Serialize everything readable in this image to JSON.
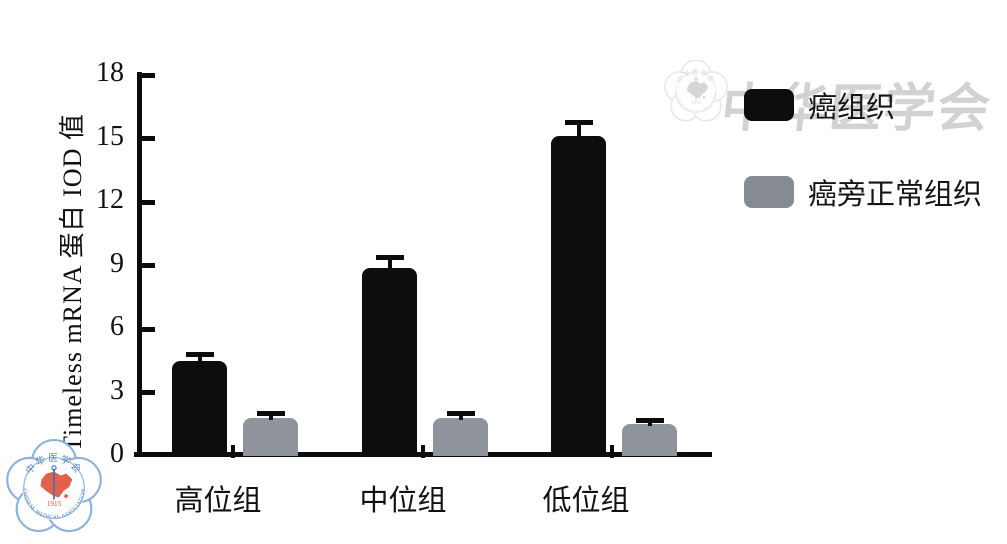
{
  "figure": {
    "background": "#ffffff",
    "axis_color": "#0c0c0c"
  },
  "y_axis": {
    "title": "Timeless mRNA 蛋白 IOD 值"
  },
  "legend": [
    {
      "label": "癌组织",
      "color": "#0d0d0d"
    },
    {
      "label": "癌旁正常组织",
      "color": "#8c9199"
    }
  ],
  "watermark": {
    "text": "中华医学会"
  },
  "logo": {
    "name": "chinese-medical-association-emblem",
    "arc_text_top": "中华医学会",
    "year": "1915",
    "arc_text_bottom": "CHINESE MEDICAL ASSOCIATION"
  },
  "chart_data": {
    "type": "bar",
    "title": "",
    "xlabel": "",
    "ylabel": "Timeless mRNA 蛋白 IOD 值",
    "categories": [
      "高位组",
      "中位组",
      "低位组"
    ],
    "series": [
      {
        "name": "癌组织",
        "color": "#0d0d0d",
        "values": [
          4.5,
          8.9,
          15.1
        ],
        "errors": [
          0.3,
          0.5,
          0.65
        ]
      },
      {
        "name": "癌旁正常组织",
        "color": "#8f949c",
        "values": [
          1.8,
          1.8,
          1.5
        ],
        "errors": [
          0.2,
          0.2,
          0.2
        ]
      }
    ],
    "ylim": [
      0,
      18
    ],
    "yticks": [
      0,
      3,
      6,
      9,
      12,
      15,
      18
    ],
    "grid": false,
    "error_bars": true,
    "legend_position": "upper-right-outside"
  }
}
